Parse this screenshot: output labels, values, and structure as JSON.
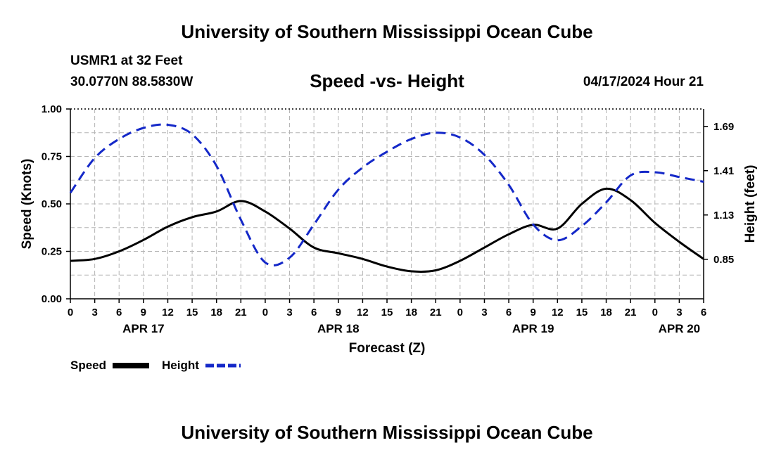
{
  "header": {
    "title": "University of Southern Mississippi Ocean Cube",
    "station": "USMR1 at 32 Feet",
    "coords": "30.0770N  88.5830W",
    "datetime": "04/17/2024 Hour 21",
    "footer_title": "University of Southern Mississippi Ocean Cube"
  },
  "chart_data": {
    "type": "line",
    "title": "Speed -vs- Height",
    "xlabel": "Forecast (Z)",
    "ylabel_left": "Speed (Knots)",
    "ylabel_right": "Height (feet)",
    "x_ticks_hours": [
      0,
      3,
      6,
      9,
      12,
      15,
      18,
      21,
      24,
      27,
      30,
      33,
      36,
      39,
      42,
      45,
      48,
      51,
      54,
      57,
      60,
      63,
      66,
      69,
      72,
      75,
      78
    ],
    "x_tick_labels": [
      "0",
      "3",
      "6",
      "9",
      "12",
      "15",
      "18",
      "21",
      "0",
      "3",
      "6",
      "9",
      "12",
      "15",
      "18",
      "21",
      "0",
      "3",
      "6",
      "9",
      "12",
      "15",
      "18",
      "21",
      "0",
      "3",
      "6"
    ],
    "date_labels": [
      {
        "hour": 9,
        "label": "APR 17"
      },
      {
        "hour": 33,
        "label": "APR 18"
      },
      {
        "hour": 57,
        "label": "APR 19"
      },
      {
        "hour": 75,
        "label": "APR 20"
      }
    ],
    "xlim": [
      0,
      78
    ],
    "left_axis": {
      "ylim": [
        0,
        1
      ],
      "ticks": [
        0,
        0.25,
        0.5,
        0.75,
        1
      ],
      "tick_labels": [
        "0.00",
        "0.25",
        "0.50",
        "0.75",
        "1.00"
      ]
    },
    "right_axis": {
      "ylim": [
        0.6,
        1.8
      ],
      "ticks": [
        0.85,
        1.13,
        1.41,
        1.69
      ],
      "tick_labels": [
        "0.85",
        "1.13",
        "1.41",
        "1.69"
      ]
    },
    "grid": true,
    "series": [
      {
        "name": "Speed",
        "axis": "left",
        "color": "#000000",
        "style": "solid",
        "points": [
          [
            0,
            0.2
          ],
          [
            3,
            0.21
          ],
          [
            6,
            0.25
          ],
          [
            9,
            0.31
          ],
          [
            12,
            0.38
          ],
          [
            15,
            0.43
          ],
          [
            18,
            0.46
          ],
          [
            21,
            0.515
          ],
          [
            24,
            0.46
          ],
          [
            27,
            0.37
          ],
          [
            30,
            0.27
          ],
          [
            33,
            0.24
          ],
          [
            36,
            0.21
          ],
          [
            39,
            0.17
          ],
          [
            42,
            0.145
          ],
          [
            45,
            0.15
          ],
          [
            48,
            0.2
          ],
          [
            51,
            0.27
          ],
          [
            54,
            0.34
          ],
          [
            57,
            0.39
          ],
          [
            60,
            0.37
          ],
          [
            63,
            0.5
          ],
          [
            66,
            0.58
          ],
          [
            69,
            0.52
          ],
          [
            72,
            0.4
          ],
          [
            75,
            0.3
          ],
          [
            78,
            0.21
          ]
        ]
      },
      {
        "name": "Height",
        "axis": "right",
        "color": "#1428c8",
        "style": "dashed",
        "points": [
          [
            0,
            1.27
          ],
          [
            3,
            1.49
          ],
          [
            6,
            1.61
          ],
          [
            9,
            1.68
          ],
          [
            12,
            1.7
          ],
          [
            15,
            1.64
          ],
          [
            18,
            1.44
          ],
          [
            21,
            1.1
          ],
          [
            24,
            0.83
          ],
          [
            27,
            0.86
          ],
          [
            30,
            1.07
          ],
          [
            33,
            1.29
          ],
          [
            36,
            1.43
          ],
          [
            39,
            1.53
          ],
          [
            42,
            1.61
          ],
          [
            45,
            1.65
          ],
          [
            48,
            1.62
          ],
          [
            51,
            1.51
          ],
          [
            54,
            1.32
          ],
          [
            57,
            1.07
          ],
          [
            60,
            0.97
          ],
          [
            63,
            1.06
          ],
          [
            66,
            1.21
          ],
          [
            69,
            1.38
          ],
          [
            72,
            1.4
          ],
          [
            75,
            1.37
          ],
          [
            78,
            1.34
          ]
        ]
      }
    ]
  },
  "legend": {
    "speed_label": "Speed",
    "height_label": "Height"
  }
}
